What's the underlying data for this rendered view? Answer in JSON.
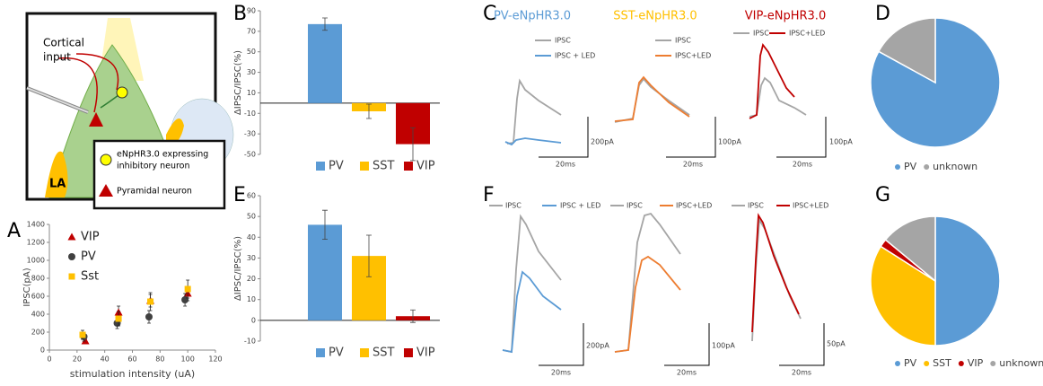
{
  "panel_labels": [
    "A",
    "B",
    "C",
    "D",
    "E",
    "F",
    "G"
  ],
  "diagram": {
    "input_label": [
      "Cortical",
      "input"
    ],
    "region_label": "LA",
    "legend": [
      [
        "eNpHR3.0 expressing",
        "inhibitory neuron"
      ],
      [
        "Pyramidal neuron"
      ]
    ]
  },
  "traces": {
    "C": {
      "titles": [
        "PV-eNpHR3.0",
        "SST-eNpHR3.0",
        "VIP-eNpHR3.0"
      ],
      "legends": [
        [
          "IPSC",
          "IPSC + LED"
        ],
        [
          "IPSC",
          "IPSC+LED"
        ],
        [
          "IPSC",
          "IPSC+LED"
        ]
      ],
      "scales": [
        [
          "200pA",
          "20ms"
        ],
        [
          "100pA",
          "20ms"
        ],
        [
          "100pA",
          "20ms"
        ]
      ]
    },
    "F": {
      "legends": [
        [
          "IPSC",
          "IPSC + LED"
        ],
        [
          "IPSC",
          "IPSC+LED"
        ],
        [
          "IPSC",
          "IPSC+LED"
        ]
      ],
      "scales": [
        [
          "200pA",
          "20ms"
        ],
        [
          "100pA",
          "20ms"
        ],
        [
          "50pA",
          "20ms"
        ]
      ]
    }
  },
  "chart_data": [
    {
      "type": "scatter",
      "xlabel": "stimulation intensity (uA)",
      "ylabel": "IPSC(pA)",
      "xlim": [
        0,
        120
      ],
      "xticks": [
        0,
        20,
        40,
        60,
        80,
        100,
        120
      ],
      "ylim": [
        0,
        1400
      ],
      "yticks": [
        0,
        200,
        400,
        600,
        800,
        1000,
        1200,
        1400
      ],
      "legend": "upper left",
      "series": [
        {
          "name": "VIP",
          "color": "#c00000",
          "marker": "triangle",
          "x": [
            26,
            50,
            73,
            100
          ],
          "values": [
            100,
            420,
            550,
            630
          ],
          "errors": [
            20,
            70,
            70,
            80
          ]
        },
        {
          "name": "PV",
          "color": "#404040",
          "marker": "circle",
          "x": [
            25,
            49,
            72,
            98
          ],
          "values": [
            150,
            300,
            370,
            560
          ],
          "errors": [
            50,
            60,
            70,
            70
          ]
        },
        {
          "name": "Sst",
          "color": "#ffc000",
          "marker": "square",
          "x": [
            24,
            50,
            73,
            100
          ],
          "values": [
            170,
            350,
            540,
            680
          ],
          "errors": [
            50,
            80,
            100,
            100
          ]
        }
      ]
    },
    {
      "type": "bar",
      "ylabel": "ΔIPSC/IPSC(%)",
      "categories": [
        "PV",
        "SST",
        "VIP"
      ],
      "values": [
        77,
        -8,
        -40
      ],
      "errors": [
        6,
        7,
        16
      ],
      "colors": [
        "#5b9bd5",
        "#ffc000",
        "#c00000"
      ],
      "ylim": [
        -50,
        90
      ],
      "yticks": [
        -50,
        -30,
        -10,
        10,
        30,
        50,
        70,
        90
      ],
      "legend": "bottom"
    },
    {
      "type": "pie",
      "categories": [
        "PV",
        "unknown"
      ],
      "values": [
        83,
        17
      ],
      "colors": [
        "#5b9bd5",
        "#a5a5a5"
      ],
      "legend": "bottom"
    },
    {
      "type": "bar",
      "ylabel": "ΔIPSC/IPSC(%)",
      "categories": [
        "PV",
        "SST",
        "VIP"
      ],
      "values": [
        46,
        31,
        2
      ],
      "errors": [
        7,
        10,
        3
      ],
      "colors": [
        "#5b9bd5",
        "#ffc000",
        "#c00000"
      ],
      "ylim": [
        -10,
        60
      ],
      "yticks": [
        -10,
        0,
        10,
        20,
        30,
        40,
        50,
        60
      ],
      "legend": "bottom"
    },
    {
      "type": "pie",
      "categories": [
        "PV",
        "SST",
        "VIP",
        "unknown"
      ],
      "values": [
        50,
        34,
        2,
        14
      ],
      "colors": [
        "#5b9bd5",
        "#ffc000",
        "#c00000",
        "#a5a5a5"
      ],
      "legend": "bottom"
    }
  ]
}
